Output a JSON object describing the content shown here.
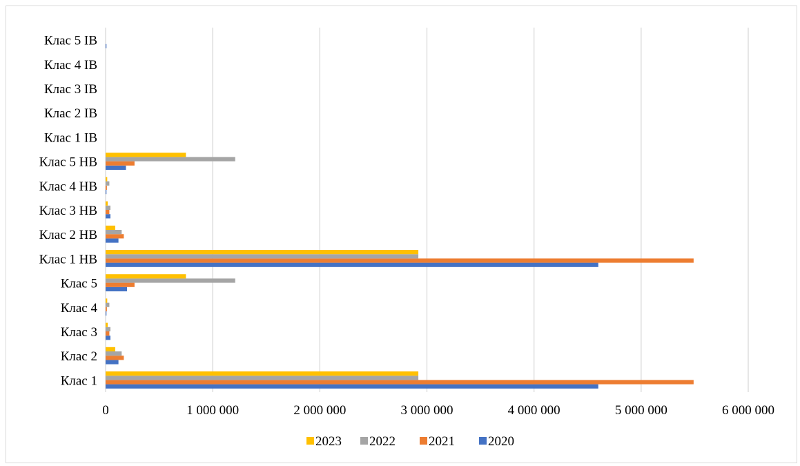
{
  "chart_data": {
    "type": "bar",
    "orientation": "horizontal",
    "title": "",
    "xlabel": "",
    "ylabel": "",
    "xlim": [
      0,
      6000000
    ],
    "x_ticks": [
      0,
      1000000,
      2000000,
      3000000,
      4000000,
      5000000,
      6000000
    ],
    "x_tick_labels": [
      "0",
      "1 000 000",
      "2 000 000",
      "3 000 000",
      "4 000 000",
      "5 000 000",
      "6 000 000"
    ],
    "grid": "vertical",
    "legend": "bottom",
    "categories": [
      "Клас 1",
      "Клас 2",
      "Клас 3",
      "Клас 4",
      "Клас 5",
      "Клас 1 НВ",
      "Клас 2 НВ",
      "Клас 3 НВ",
      "Клас 4 НВ",
      "Клас 5 НВ",
      "Клас 1 ІВ",
      "Клас 2 ІВ",
      "Клас 3 ІВ",
      "Клас 4 ІВ",
      "Клас 5 ІВ"
    ],
    "series": [
      {
        "name": "2020",
        "color": "#4472C4",
        "values": [
          4600000,
          120000,
          45000,
          8000,
          200000,
          4600000,
          120000,
          45000,
          8000,
          190000,
          0,
          0,
          0,
          0,
          8000
        ]
      },
      {
        "name": "2021",
        "color": "#ED7D31",
        "values": [
          5490000,
          170000,
          35000,
          12000,
          270000,
          5490000,
          170000,
          35000,
          12000,
          270000,
          0,
          0,
          0,
          0,
          0
        ]
      },
      {
        "name": "2022",
        "color": "#A5A5A5",
        "values": [
          2920000,
          150000,
          45000,
          35000,
          1210000,
          2920000,
          150000,
          45000,
          35000,
          1210000,
          0,
          0,
          0,
          0,
          0
        ]
      },
      {
        "name": "2023",
        "color": "#FFC000",
        "values": [
          2920000,
          90000,
          20000,
          15000,
          750000,
          2920000,
          90000,
          20000,
          15000,
          750000,
          0,
          0,
          0,
          0,
          0
        ]
      }
    ],
    "legend_order": [
      "2023",
      "2022",
      "2021",
      "2020"
    ]
  }
}
